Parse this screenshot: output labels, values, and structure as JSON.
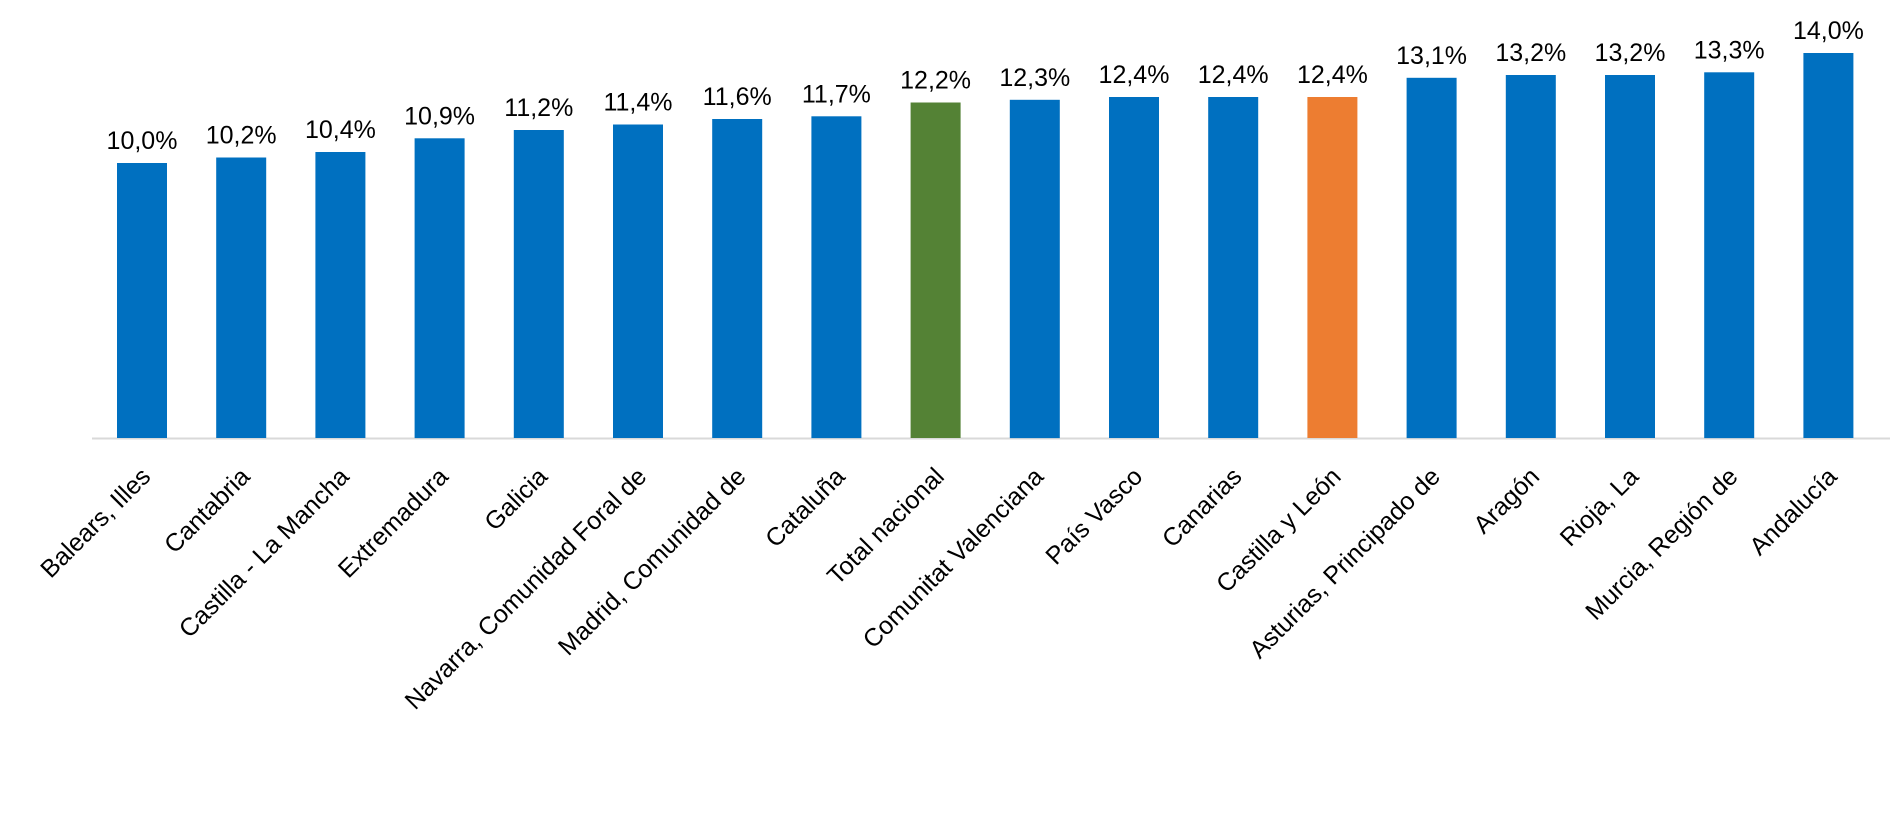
{
  "chart_data": {
    "type": "bar",
    "title": "",
    "xlabel": "",
    "ylabel": "",
    "ylim": [
      0,
      14.0
    ],
    "grid": false,
    "legend": "none",
    "categories": [
      "Balears, Illes",
      "Cantabria",
      "Castilla - La Mancha",
      "Extremadura",
      "Galicia",
      "Navarra, Comunidad Foral de",
      "Madrid, Comunidad de",
      "Cataluña",
      "Total nacional",
      "Comunitat Valenciana",
      "País Vasco",
      "Canarias",
      "Castilla y León",
      "Asturias, Principado de",
      "Aragón",
      "Rioja, La",
      "Murcia, Región de",
      "Andalucía"
    ],
    "values": [
      10.0,
      10.2,
      10.4,
      10.9,
      11.2,
      11.4,
      11.6,
      11.7,
      12.2,
      12.3,
      12.4,
      12.4,
      12.4,
      13.1,
      13.2,
      13.2,
      13.3,
      14.0
    ],
    "value_labels": [
      "10,0%",
      "10,2%",
      "10,4%",
      "10,9%",
      "11,2%",
      "11,4%",
      "11,6%",
      "11,7%",
      "12,2%",
      "12,3%",
      "12,4%",
      "12,4%",
      "12,4%",
      "13,1%",
      "13,2%",
      "13,2%",
      "13,3%",
      "14,0%"
    ],
    "bar_colors": [
      "#0070C0",
      "#0070C0",
      "#0070C0",
      "#0070C0",
      "#0070C0",
      "#0070C0",
      "#0070C0",
      "#0070C0",
      "#548235",
      "#0070C0",
      "#0070C0",
      "#0070C0",
      "#ED7D31",
      "#0070C0",
      "#0070C0",
      "#0070C0",
      "#0070C0",
      "#0070C0"
    ],
    "axis_color": "#D9D9D9"
  }
}
